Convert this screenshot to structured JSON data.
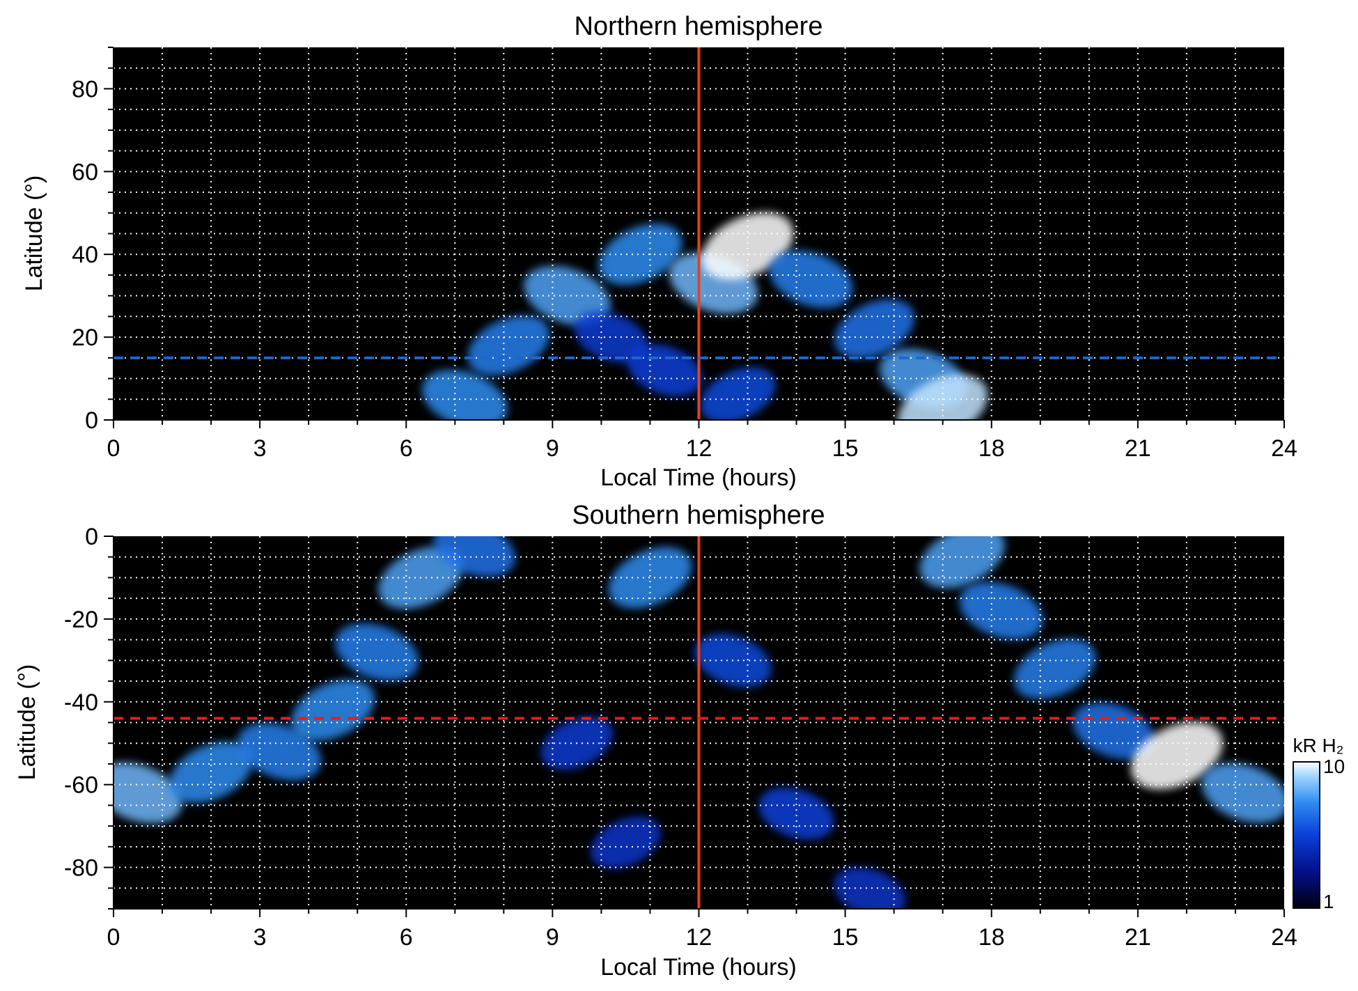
{
  "chart_data": [
    {
      "type": "heatmap",
      "title": "Northern hemisphere",
      "xlabel": "Local Time (hours)",
      "ylabel": "Latitude (°)",
      "xlim": [
        0,
        24
      ],
      "ylim": [
        0,
        90
      ],
      "xticks": [
        "0",
        "3",
        "6",
        "9",
        "12",
        "15",
        "18",
        "21",
        "24"
      ],
      "yticks": [
        "0",
        "20",
        "40",
        "60",
        "80"
      ],
      "grid": true,
      "reference_lines": [
        {
          "orientation": "vertical",
          "value": 12,
          "color": "#e8401c",
          "style": "solid"
        },
        {
          "orientation": "horizontal",
          "value": 15,
          "color": "#1e66d0",
          "style": "dashed"
        }
      ],
      "emission_blobs": [
        {
          "x": 7.2,
          "y": 5,
          "intensity": 0.75
        },
        {
          "x": 8.1,
          "y": 18,
          "intensity": 0.7
        },
        {
          "x": 9.3,
          "y": 30,
          "intensity": 0.8
        },
        {
          "x": 10.8,
          "y": 40,
          "intensity": 0.75
        },
        {
          "x": 12.3,
          "y": 33,
          "intensity": 0.85
        },
        {
          "x": 13.0,
          "y": 42,
          "intensity": 1.0
        },
        {
          "x": 14.3,
          "y": 34,
          "intensity": 0.7
        },
        {
          "x": 15.6,
          "y": 22,
          "intensity": 0.65
        },
        {
          "x": 16.6,
          "y": 10,
          "intensity": 0.8
        },
        {
          "x": 17.0,
          "y": 3,
          "intensity": 0.95
        },
        {
          "x": 11.3,
          "y": 12,
          "intensity": 0.45
        },
        {
          "x": 12.8,
          "y": 6,
          "intensity": 0.5
        },
        {
          "x": 10.2,
          "y": 20,
          "intensity": 0.4
        }
      ]
    },
    {
      "type": "heatmap",
      "title": "Southern hemisphere",
      "xlabel": "Local Time (hours)",
      "ylabel": "Latitude (°)",
      "xlim": [
        0,
        24
      ],
      "ylim": [
        -90,
        0
      ],
      "xticks": [
        "0",
        "3",
        "6",
        "9",
        "12",
        "15",
        "18",
        "21",
        "24"
      ],
      "yticks": [
        "0",
        "-20",
        "-40",
        "-60",
        "-80"
      ],
      "grid": true,
      "reference_lines": [
        {
          "orientation": "vertical",
          "value": 12,
          "color": "#e8401c",
          "style": "solid"
        },
        {
          "orientation": "horizontal",
          "value": -44,
          "color": "#e02020",
          "style": "dashed"
        }
      ],
      "colorbar": {
        "label": "kR H₂",
        "min_label": "1",
        "max_label": "10",
        "scale": "log",
        "colors": [
          "#000010",
          "#02108a",
          "#0a3fd8",
          "#2d8cf0",
          "#9fd4ff",
          "#ffffff"
        ]
      },
      "emission_blobs": [
        {
          "x": 0.5,
          "y": -62,
          "intensity": 0.85
        },
        {
          "x": 2.0,
          "y": -57,
          "intensity": 0.75
        },
        {
          "x": 3.4,
          "y": -52,
          "intensity": 0.7
        },
        {
          "x": 4.5,
          "y": -42,
          "intensity": 0.75
        },
        {
          "x": 5.4,
          "y": -28,
          "intensity": 0.7
        },
        {
          "x": 6.3,
          "y": -10,
          "intensity": 0.8
        },
        {
          "x": 7.4,
          "y": -3,
          "intensity": 0.65
        },
        {
          "x": 11.0,
          "y": -10,
          "intensity": 0.75
        },
        {
          "x": 12.7,
          "y": -30,
          "intensity": 0.5
        },
        {
          "x": 17.4,
          "y": -5,
          "intensity": 0.8
        },
        {
          "x": 18.2,
          "y": -18,
          "intensity": 0.7
        },
        {
          "x": 19.3,
          "y": -32,
          "intensity": 0.7
        },
        {
          "x": 20.5,
          "y": -47,
          "intensity": 0.65
        },
        {
          "x": 21.8,
          "y": -53,
          "intensity": 1.0
        },
        {
          "x": 23.2,
          "y": -62,
          "intensity": 0.8
        },
        {
          "x": 9.5,
          "y": -50,
          "intensity": 0.4
        },
        {
          "x": 14.0,
          "y": -67,
          "intensity": 0.45
        },
        {
          "x": 10.5,
          "y": -74,
          "intensity": 0.35
        },
        {
          "x": 15.5,
          "y": -86,
          "intensity": 0.35
        }
      ]
    }
  ]
}
